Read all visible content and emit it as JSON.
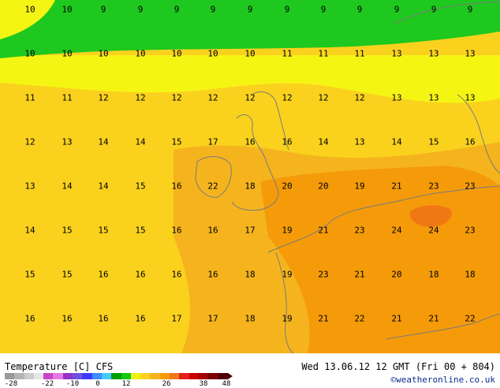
{
  "map": {
    "labels": [
      {
        "row": 0,
        "values": [
          "10",
          "10",
          "9",
          "9",
          "9",
          "9",
          "9",
          "9",
          "9",
          "9",
          "9",
          "9",
          "9"
        ]
      },
      {
        "row": 1,
        "values": [
          "10",
          "10",
          "10",
          "10",
          "10",
          "10",
          "10",
          "11",
          "11",
          "11",
          "13",
          "13",
          "13"
        ]
      },
      {
        "row": 2,
        "values": [
          "11",
          "11",
          "12",
          "12",
          "12",
          "12",
          "12",
          "12",
          "12",
          "12",
          "13",
          "13",
          "13"
        ]
      },
      {
        "row": 3,
        "values": [
          "12",
          "13",
          "14",
          "14",
          "15",
          "17",
          "16",
          "16",
          "14",
          "13",
          "14",
          "15",
          "16"
        ]
      },
      {
        "row": 4,
        "values": [
          "13",
          "14",
          "14",
          "15",
          "16",
          "22",
          "18",
          "20",
          "20",
          "19",
          "21",
          "23",
          "23"
        ]
      },
      {
        "row": 5,
        "values": [
          "14",
          "15",
          "15",
          "15",
          "16",
          "16",
          "17",
          "19",
          "21",
          "23",
          "24",
          "24",
          "23"
        ]
      },
      {
        "row": 6,
        "values": [
          "15",
          "15",
          "16",
          "16",
          "16",
          "16",
          "18",
          "19",
          "23",
          "21",
          "20",
          "18",
          "18"
        ]
      },
      {
        "row": 7,
        "values": [
          "16",
          "16",
          "16",
          "16",
          "17",
          "17",
          "18",
          "19",
          "21",
          "22",
          "21",
          "21",
          "22"
        ]
      }
    ],
    "colors": {
      "band_9_10": "#1ec81e",
      "band_10_12": "#f5f514",
      "band_12_16": "#fad21e",
      "band_16_20": "#f5b41e",
      "band_20_24": "#f59b0a",
      "band_24_plus": "#f07814",
      "coastline": "#7a7a7a"
    }
  },
  "footer": {
    "title": "Temperature [C] CFS",
    "timestamp": "Wed 13.06.12 12 GMT (Fri 00 + 804)",
    "credit": "©weatheronline.co.uk",
    "scale_labels": [
      "-28",
      "-22",
      "-10",
      "0",
      "12",
      "26",
      "38",
      "48"
    ],
    "scale_colors": [
      "#9a9a9a",
      "#b4b4b4",
      "#cdcdcd",
      "#e6e6e6",
      "#c846c8",
      "#e678e6",
      "#9632c8",
      "#6e50dc",
      "#3c3cff",
      "#3c8cff",
      "#46c8ff",
      "#00a000",
      "#14c814",
      "#f0f014",
      "#fad21e",
      "#f5b41e",
      "#f59b0a",
      "#f07814",
      "#e61e1e",
      "#c80000",
      "#a00000",
      "#780000",
      "#500000"
    ]
  }
}
